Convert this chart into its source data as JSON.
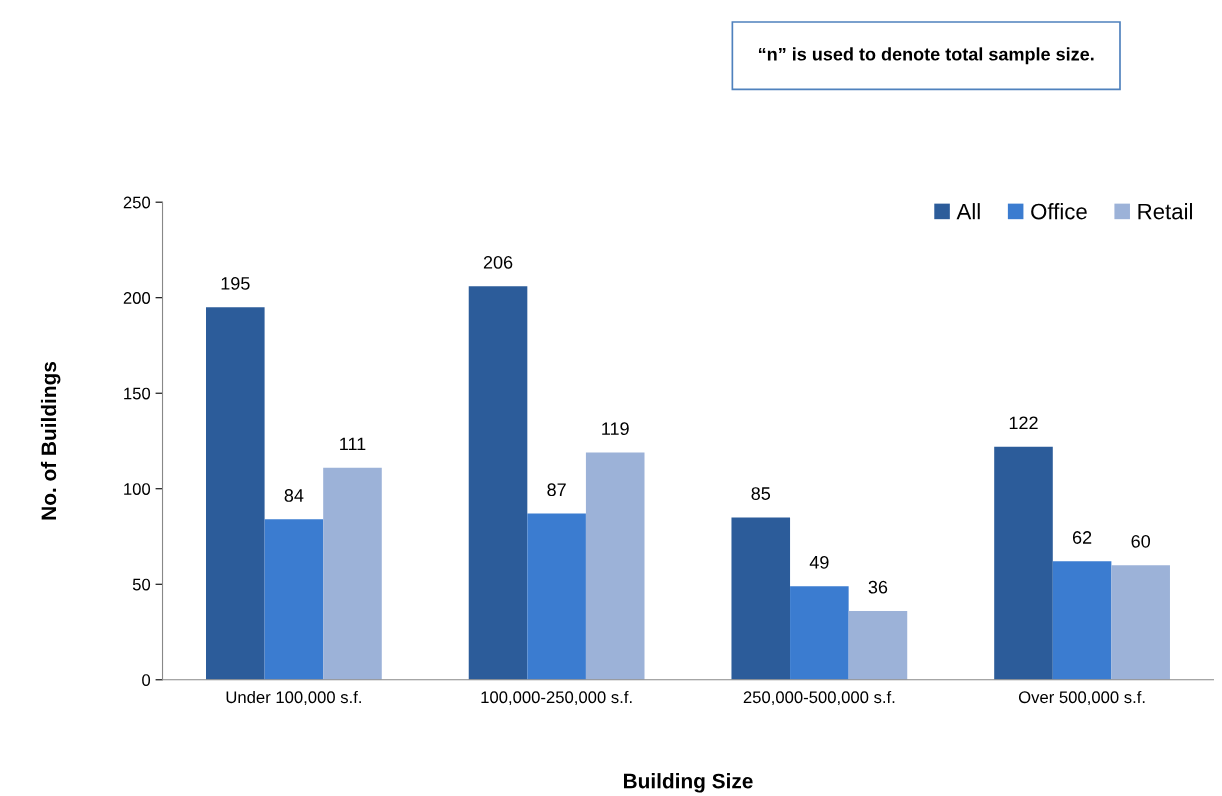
{
  "chart_data": {
    "type": "bar",
    "categories": [
      "Under 100,000 s.f.",
      "100,000-250,000 s.f.",
      "250,000-500,000 s.f.",
      "Over 500,000 s.f."
    ],
    "series": [
      {
        "name": "All",
        "color": "#2c5c9a",
        "values": [
          195,
          206,
          85,
          122
        ]
      },
      {
        "name": "Office",
        "color": "#3b7cd0",
        "values": [
          84,
          87,
          49,
          62
        ]
      },
      {
        "name": "Retail",
        "color": "#9cb2d8",
        "values": [
          111,
          119,
          36,
          60
        ]
      }
    ],
    "xlabel": "Building Size",
    "ylabel": "No. of Buildings",
    "ylim": [
      0,
      250
    ],
    "yticks": [
      0,
      50,
      100,
      150,
      200,
      250
    ],
    "data_labels": true,
    "grid": false,
    "legend": "top right",
    "annotations": [
      "“n” is used to denote total sample size."
    ]
  }
}
